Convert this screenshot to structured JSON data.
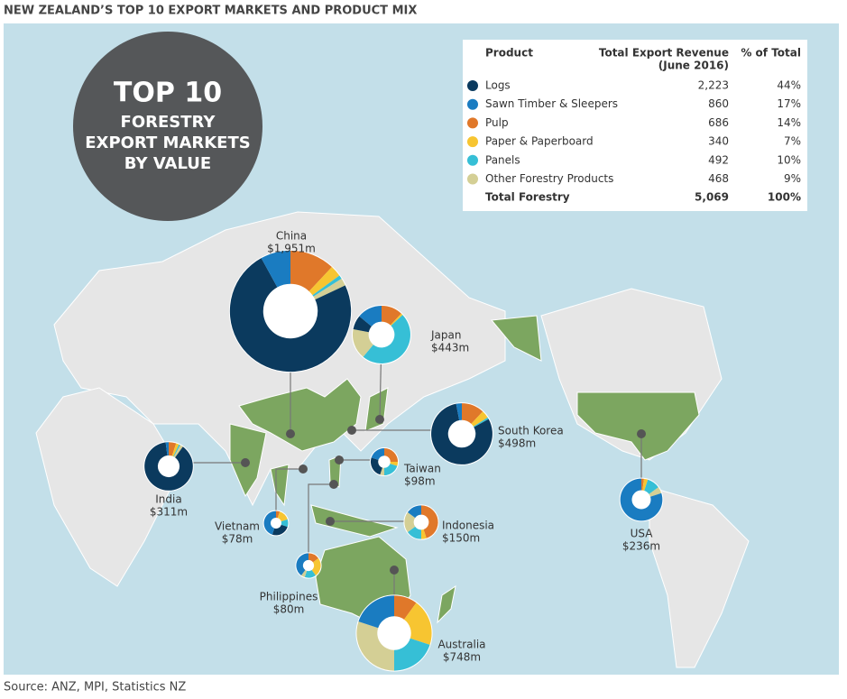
{
  "title": "NEW ZEALAND’S TOP 10 EXPORT MARKETS AND PRODUCT MIX",
  "badge": {
    "line1": "TOP 10",
    "line2": "FORESTRY",
    "line3": "EXPORT MARKETS",
    "line4": "BY VALUE"
  },
  "table": {
    "headers": [
      "Product",
      "Total Export Revenue",
      "(June 2016)",
      "% of Total"
    ],
    "rows": [
      {
        "product": "Logs",
        "color": "#0b3a5e",
        "revenue": "2,223",
        "share": "44%"
      },
      {
        "product": "Sawn Timber & Sleepers",
        "color": "#1a7cc1",
        "revenue": "860",
        "share": "17%"
      },
      {
        "product": "Pulp",
        "color": "#e0782a",
        "revenue": "686",
        "share": "14%"
      },
      {
        "product": "Paper & Paperboard",
        "color": "#f7c531",
        "revenue": "340",
        "share": "7%"
      },
      {
        "product": "Panels",
        "color": "#36bfd6",
        "revenue": "492",
        "share": "10%"
      },
      {
        "product": "Other Forestry Products",
        "color": "#d4cf95",
        "revenue": "468",
        "share": "9%"
      }
    ],
    "total": {
      "product": "Total Forestry",
      "revenue": "5,069",
      "share": "100%"
    }
  },
  "markets": [
    {
      "name": "China",
      "value": 1951,
      "value_label": "$1,951m",
      "segments": [
        74,
        8,
        12,
        3,
        1,
        2
      ]
    },
    {
      "name": "Japan",
      "value": 443,
      "value_label": "$443m",
      "segments": [
        8,
        14,
        12,
        1,
        48,
        17
      ]
    },
    {
      "name": "South Korea",
      "value": 498,
      "value_label": "$498m",
      "segments": [
        80,
        3,
        12,
        4,
        1,
        0
      ]
    },
    {
      "name": "Taiwan",
      "value": 98,
      "value_label": "$98m",
      "segments": [
        25,
        20,
        25,
        5,
        20,
        5
      ]
    },
    {
      "name": "India",
      "value": 311,
      "value_label": "$311m",
      "segments": [
        88,
        2,
        5,
        2,
        1,
        2
      ]
    },
    {
      "name": "Indonesia",
      "value": 150,
      "value_label": "$150m",
      "segments": [
        0,
        15,
        45,
        5,
        15,
        20
      ]
    },
    {
      "name": "Vietnam",
      "value": 78,
      "value_label": "$78m",
      "segments": [
        25,
        45,
        5,
        15,
        10,
        0
      ]
    },
    {
      "name": "Philippines",
      "value": 80,
      "value_label": "$80m",
      "segments": [
        0,
        40,
        15,
        25,
        15,
        5
      ]
    },
    {
      "name": "Australia",
      "value": 748,
      "value_label": "$748m",
      "segments": [
        0,
        20,
        10,
        20,
        20,
        30
      ]
    },
    {
      "name": "USA",
      "value": 236,
      "value_label": "$236m",
      "segments": [
        0,
        80,
        2,
        3,
        10,
        5
      ]
    }
  ],
  "source": "Source: ANZ, MPI, Statistics NZ"
}
